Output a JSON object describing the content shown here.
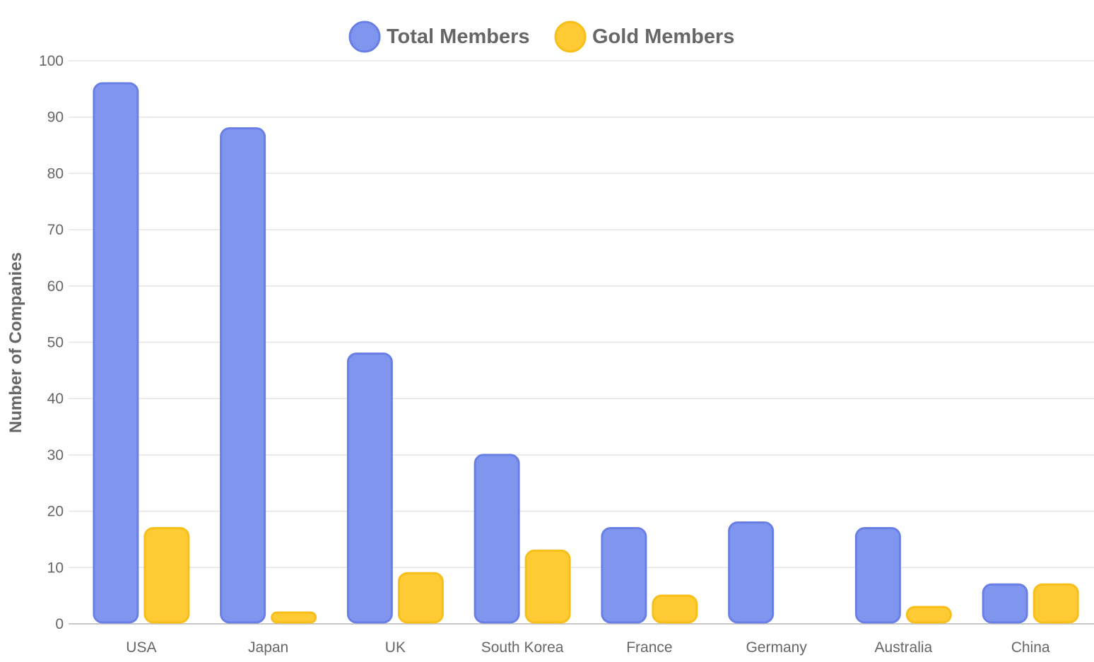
{
  "chart_data": {
    "type": "bar",
    "categories": [
      "USA",
      "Japan",
      "UK",
      "South Korea",
      "France",
      "Germany",
      "Australia",
      "China"
    ],
    "series": [
      {
        "name": "Total Members",
        "values": [
          96,
          88,
          48,
          30,
          17,
          18,
          17,
          7
        ],
        "color": "#8096ee",
        "border": "#6a7fe6"
      },
      {
        "name": "Gold Members",
        "values": [
          17,
          2,
          9,
          13,
          5,
          0,
          3,
          7
        ],
        "color": "#fecb35",
        "border": "#f8bf1a"
      }
    ],
    "ylabel": "Number of Companies",
    "xlabel": "",
    "title": "",
    "ylim": [
      0,
      100
    ],
    "yticks": [
      "0",
      "10",
      "20",
      "30",
      "40",
      "50",
      "60",
      "70",
      "80",
      "90",
      "100"
    ],
    "grid": true,
    "legend": "top-center"
  }
}
